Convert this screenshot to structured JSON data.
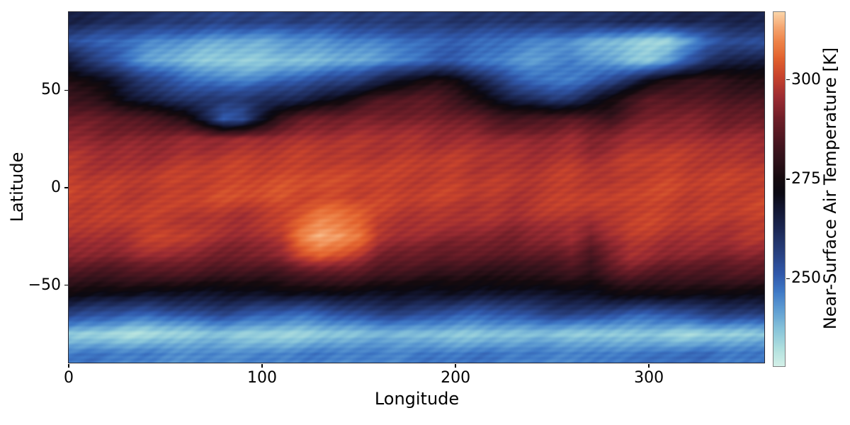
{
  "figure": {
    "background": "#ffffff"
  },
  "chart_data": {
    "type": "heatmap",
    "title": "",
    "xlabel": "Longitude",
    "ylabel": "Latitude",
    "xlim": [
      0,
      360
    ],
    "ylim": [
      -90,
      90
    ],
    "x_ticks": [
      0,
      100,
      200,
      300
    ],
    "y_ticks": [
      50,
      0,
      -50
    ],
    "grid_on": false,
    "colorbar": {
      "label": "Near-Surface Air Temperature [K]",
      "ticks": [
        300,
        275,
        250
      ],
      "vmin": 228,
      "vmax": 317,
      "side": "right"
    },
    "colormap_stops": [
      [
        0.0,
        "#d3f0e8"
      ],
      [
        0.05,
        "#b0e0de"
      ],
      [
        0.1,
        "#8ac6da"
      ],
      [
        0.16,
        "#5e9cd2"
      ],
      [
        0.21,
        "#3f79c6"
      ],
      [
        0.26,
        "#3058aa"
      ],
      [
        0.32,
        "#28407f"
      ],
      [
        0.38,
        "#1d2a58"
      ],
      [
        0.44,
        "#131733"
      ],
      [
        0.49,
        "#0b0912"
      ],
      [
        0.53,
        "#150a0e"
      ],
      [
        0.58,
        "#2e1119"
      ],
      [
        0.64,
        "#4c1620"
      ],
      [
        0.7,
        "#6f1e28"
      ],
      [
        0.76,
        "#9c2c32"
      ],
      [
        0.82,
        "#c8432c"
      ],
      [
        0.87,
        "#e2622e"
      ],
      [
        0.92,
        "#ee854a"
      ],
      [
        0.96,
        "#f5a873"
      ],
      [
        1.0,
        "#fbd4a8"
      ]
    ],
    "grid": {
      "units": "K",
      "lat_start": 85,
      "lat_step": -10,
      "lon_start": 0,
      "lon_step": 10,
      "values": [
        [
          264,
          263,
          262,
          261,
          260,
          259,
          258,
          257,
          256,
          256,
          256,
          256,
          257,
          257,
          257,
          258,
          258,
          258,
          258,
          258,
          259,
          259,
          259,
          259,
          260,
          260,
          260,
          260,
          261,
          261,
          262,
          262,
          263,
          263,
          264,
          264
        ],
        [
          253,
          251,
          249,
          247,
          245,
          244,
          243,
          242,
          241,
          241,
          241,
          242,
          243,
          243,
          244,
          245,
          246,
          247,
          249,
          250,
          250,
          249,
          248,
          246,
          245,
          244,
          243,
          241,
          239,
          237,
          235,
          234,
          241,
          249,
          252,
          253
        ],
        [
          266,
          260,
          254,
          248,
          243,
          240,
          238,
          236,
          235,
          235,
          236,
          237,
          238,
          239,
          240,
          241,
          242,
          244,
          247,
          250,
          250,
          248,
          246,
          244,
          243,
          244,
          246,
          243,
          240,
          237,
          236,
          241,
          252,
          260,
          264,
          266
        ],
        [
          277,
          274,
          269,
          263,
          257,
          253,
          250,
          248,
          246,
          246,
          247,
          249,
          251,
          253,
          255,
          258,
          263,
          269,
          274,
          276,
          274,
          266,
          258,
          252,
          248,
          246,
          247,
          250,
          254,
          262,
          270,
          276,
          280,
          280,
          279,
          278
        ],
        [
          283,
          281,
          277,
          271,
          266,
          262,
          260,
          258,
          258,
          259,
          261,
          263,
          265,
          269,
          273,
          279,
          284,
          286,
          287,
          286,
          283,
          277,
          271,
          266,
          262,
          258,
          260,
          266,
          274,
          282,
          287,
          288,
          287,
          286,
          285,
          284
        ],
        [
          290,
          289,
          288,
          287,
          285,
          283,
          279,
          266,
          252,
          254,
          268,
          282,
          288,
          290,
          291,
          292,
          292,
          292,
          291,
          291,
          290,
          288,
          285,
          283,
          284,
          286,
          288,
          285,
          283,
          288,
          291,
          292,
          292,
          291,
          290,
          290
        ],
        [
          295,
          294,
          293,
          293,
          292,
          293,
          294,
          294,
          295,
          296,
          296,
          297,
          297,
          297,
          297,
          297,
          297,
          297,
          297,
          296,
          296,
          296,
          295,
          294,
          293,
          294,
          295,
          292,
          294,
          296,
          297,
          297,
          296,
          296,
          295,
          295
        ],
        [
          298,
          297,
          296,
          296,
          296,
          297,
          298,
          298,
          299,
          299,
          299,
          299,
          300,
          300,
          299,
          299,
          299,
          299,
          299,
          299,
          299,
          298,
          298,
          297,
          297,
          298,
          298,
          296,
          297,
          299,
          300,
          300,
          299,
          299,
          298,
          298
        ],
        [
          300,
          299,
          299,
          298,
          299,
          300,
          300,
          301,
          301,
          302,
          302,
          302,
          302,
          302,
          301,
          301,
          301,
          300,
          300,
          300,
          300,
          299,
          299,
          298,
          298,
          299,
          300,
          299,
          298,
          300,
          301,
          301,
          300,
          300,
          300,
          300
        ],
        [
          301,
          300,
          300,
          299,
          300,
          300,
          301,
          301,
          302,
          302,
          302,
          303,
          302,
          302,
          302,
          301,
          301,
          300,
          300,
          300,
          300,
          299,
          299,
          298,
          299,
          300,
          301,
          300,
          299,
          301,
          301,
          301,
          300,
          300,
          300,
          301
        ],
        [
          300,
          299,
          299,
          300,
          300,
          299,
          299,
          298,
          298,
          297,
          298,
          300,
          304,
          308,
          308,
          306,
          300,
          299,
          298,
          298,
          298,
          297,
          297,
          296,
          297,
          298,
          299,
          297,
          299,
          301,
          301,
          300,
          299,
          299,
          299,
          300
        ],
        [
          298,
          297,
          297,
          298,
          300,
          301,
          300,
          297,
          296,
          295,
          296,
          300,
          310,
          314,
          313,
          308,
          298,
          296,
          295,
          294,
          294,
          293,
          293,
          292,
          293,
          294,
          296,
          290,
          296,
          299,
          299,
          298,
          297,
          297,
          297,
          298
        ],
        [
          293,
          292,
          292,
          293,
          295,
          296,
          294,
          292,
          291,
          290,
          291,
          294,
          300,
          305,
          303,
          298,
          292,
          290,
          289,
          288,
          288,
          287,
          287,
          286,
          287,
          288,
          290,
          284,
          292,
          296,
          295,
          293,
          292,
          292,
          292,
          293
        ],
        [
          284,
          283,
          283,
          283,
          284,
          284,
          283,
          282,
          281,
          281,
          281,
          282,
          284,
          286,
          285,
          284,
          282,
          281,
          280,
          279,
          279,
          278,
          278,
          277,
          278,
          279,
          280,
          278,
          284,
          287,
          286,
          284,
          284,
          284,
          284,
          284
        ],
        [
          272,
          271,
          270,
          270,
          269,
          269,
          268,
          268,
          268,
          268,
          268,
          269,
          269,
          270,
          270,
          270,
          269,
          269,
          268,
          268,
          268,
          267,
          267,
          267,
          268,
          268,
          269,
          270,
          271,
          272,
          272,
          272,
          272,
          272,
          272,
          272
        ],
        [
          256,
          254,
          252,
          250,
          249,
          250,
          252,
          254,
          255,
          253,
          251,
          249,
          248,
          249,
          251,
          253,
          255,
          256,
          255,
          253,
          251,
          250,
          250,
          251,
          253,
          255,
          256,
          255,
          253,
          251,
          250,
          251,
          253,
          255,
          256,
          256
        ],
        [
          236,
          235,
          234,
          233,
          233,
          234,
          235,
          236,
          236,
          235,
          234,
          234,
          235,
          236,
          237,
          238,
          238,
          238,
          237,
          236,
          236,
          236,
          237,
          238,
          238,
          237,
          236,
          235,
          235,
          236,
          236,
          235,
          234,
          235,
          236,
          236
        ],
        [
          247,
          247,
          246,
          246,
          246,
          245,
          245,
          245,
          245,
          245,
          245,
          245,
          246,
          246,
          246,
          246,
          246,
          246,
          247,
          247,
          247,
          247,
          247,
          246,
          246,
          246,
          246,
          246,
          247,
          247,
          247,
          248,
          248,
          248,
          247,
          247
        ]
      ]
    }
  }
}
